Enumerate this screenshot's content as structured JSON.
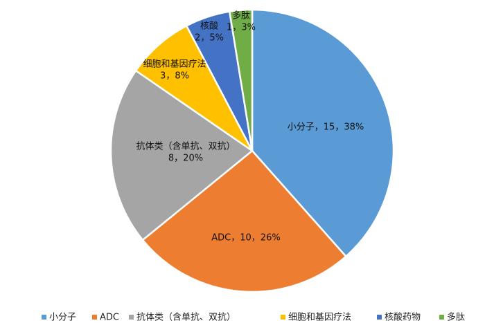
{
  "chart_data": {
    "type": "pie",
    "title": "",
    "legend_position": "bottom",
    "slices": [
      {
        "name": "小分子",
        "value": 15,
        "percent": "38%",
        "label_line1": "小分子，15，38%",
        "label_line2": "",
        "color": "#5b9bd5"
      },
      {
        "name": "ADC",
        "value": 10,
        "percent": "26%",
        "label_line1": "ADC，10，26%",
        "label_line2": "",
        "color": "#ed7d31"
      },
      {
        "name": "抗体类（含单抗、双抗）",
        "value": 8,
        "percent": "20%",
        "label_line1": "抗体类（含单抗、双抗）",
        "label_line2": "8，20%",
        "color": "#a5a5a5"
      },
      {
        "name": "细胞和基因疗法",
        "value": 3,
        "percent": "8%",
        "label_line1": "细胞和基因疗法",
        "label_line2": "3，8%",
        "color": "#ffc000"
      },
      {
        "name": "核酸",
        "value": 2,
        "percent": "5%",
        "label_line1": "核酸",
        "label_line2": "2，5%",
        "color": "#4472c4"
      },
      {
        "name": "多肽",
        "value": 1,
        "percent": "3%",
        "label_line1": "多肽",
        "label_line2": "1，3%",
        "color": "#70ad47"
      }
    ],
    "legend": [
      {
        "label": "小分子",
        "color": "#5b9bd5"
      },
      {
        "label": "ADC",
        "color": "#ed7d31"
      },
      {
        "label": "抗体类（含单抗、双抗）",
        "color": "#a5a5a5"
      },
      {
        "label": "细胞和基因疗法",
        "color": "#ffc000"
      },
      {
        "label": "核酸药物",
        "color": "#4472c4"
      },
      {
        "label": "多肽",
        "color": "#70ad47"
      }
    ]
  }
}
